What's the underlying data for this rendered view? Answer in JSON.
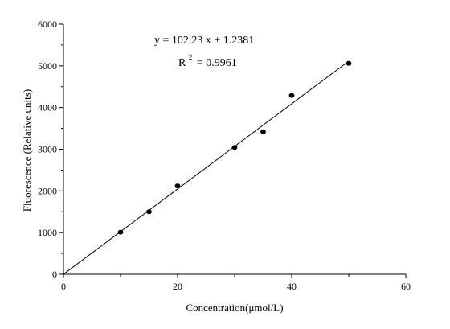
{
  "chart_data": {
    "type": "scatter",
    "xlabel": "Concentration(μmol/L)",
    "ylabel": "Fluorescence (Relative units)",
    "xlim": [
      0,
      60
    ],
    "ylim": [
      0,
      6000
    ],
    "xticks": [
      "0",
      "20",
      "40",
      "60"
    ],
    "yticks": [
      "0",
      "1000",
      "2000",
      "3000",
      "4000",
      "5000",
      "6000"
    ],
    "grid": false,
    "points": [
      {
        "x": 10,
        "y": 1010
      },
      {
        "x": 15,
        "y": 1500
      },
      {
        "x": 20,
        "y": 2120
      },
      {
        "x": 30,
        "y": 3040
      },
      {
        "x": 35,
        "y": 3420
      },
      {
        "x": 40,
        "y": 4290
      },
      {
        "x": 50,
        "y": 5060
      }
    ],
    "fit_line": {
      "slope": 102.23,
      "intercept": 1.2381,
      "x_range": [
        0,
        50
      ]
    },
    "equation_text": "y = 102.23 x + 1.2381",
    "r2_label": "R",
    "r2_superscript": "2",
    "r2_value_text": "= 0.9961",
    "colors": {
      "axis": "#000000",
      "points": "#000000",
      "line": "#000000"
    }
  }
}
